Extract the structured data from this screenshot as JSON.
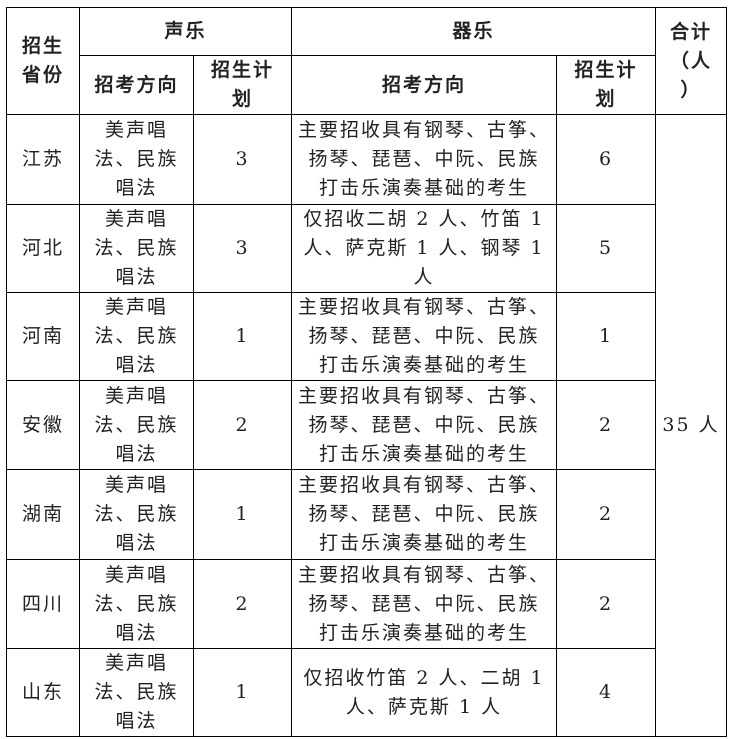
{
  "headers": {
    "province": "招生\n省份",
    "vocal": "声乐",
    "instrumental": "器乐",
    "total": "合计\n（人\n）",
    "vocal_direction": "招考方向",
    "vocal_plan": "招生计\n划",
    "instr_direction": "招考方向",
    "instr_plan": "招生计\n划"
  },
  "total_value": "35 人",
  "rows": [
    {
      "province": "江苏",
      "vocal_direction": "美声唱\n法、民族\n唱法",
      "vocal_plan": "3",
      "instr_direction": "主要招收具有钢琴、古筝、\n扬琴、琵琶、中阮、民族\n打击乐演奏基础的考生",
      "instr_plan": "6"
    },
    {
      "province": "河北",
      "vocal_direction": "美声唱\n法、民族\n唱法",
      "vocal_plan": "3",
      "instr_direction": "仅招收二胡 2 人、竹笛 1\n人、萨克斯 1 人、钢琴 1\n人",
      "instr_plan": "5"
    },
    {
      "province": "河南",
      "vocal_direction": "美声唱\n法、民族\n唱法",
      "vocal_plan": "1",
      "instr_direction": "主要招收具有钢琴、古筝、\n扬琴、琵琶、中阮、民族\n打击乐演奏基础的考生",
      "instr_plan": "1"
    },
    {
      "province": "安徽",
      "vocal_direction": "美声唱\n法、民族\n唱法",
      "vocal_plan": "2",
      "instr_direction": "主要招收具有钢琴、古筝、\n扬琴、琵琶、中阮、民族\n打击乐演奏基础的考生",
      "instr_plan": "2"
    },
    {
      "province": "湖南",
      "vocal_direction": "美声唱\n法、民族\n唱法",
      "vocal_plan": "1",
      "instr_direction": "主要招收具有钢琴、古筝、\n扬琴、琵琶、中阮、民族\n打击乐演奏基础的考生",
      "instr_plan": "2"
    },
    {
      "province": "四川",
      "vocal_direction": "美声唱\n法、民族\n唱法",
      "vocal_plan": "2",
      "instr_direction": "主要招收具有钢琴、古筝、\n扬琴、琵琶、中阮、民族\n打击乐演奏基础的考生",
      "instr_plan": "2"
    },
    {
      "province": "山东",
      "vocal_direction": "美声唱\n法、民族\n唱法",
      "vocal_plan": "1",
      "instr_direction": "仅招收竹笛 2 人、二胡 1\n人、萨克斯 1 人",
      "instr_plan": "4"
    }
  ]
}
